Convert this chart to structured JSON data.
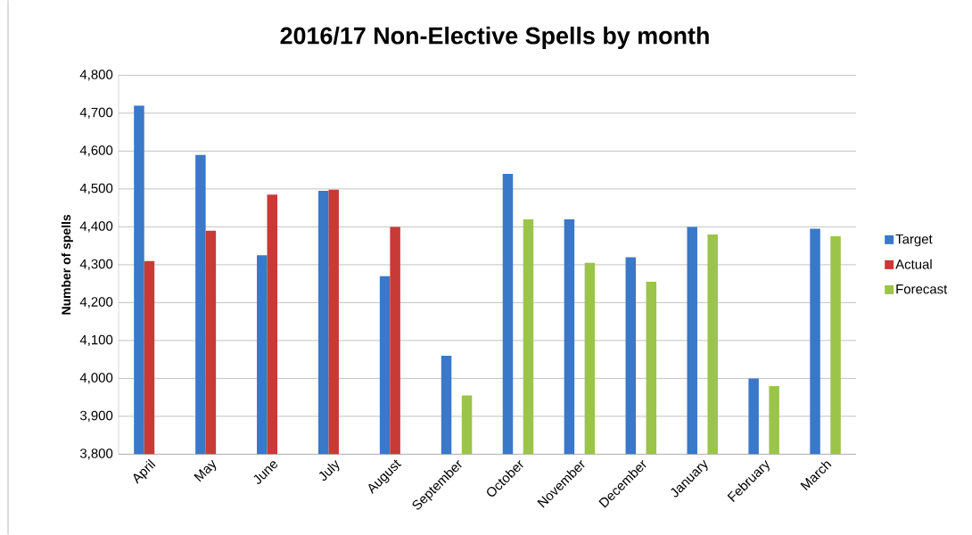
{
  "chart_data": {
    "type": "bar",
    "title": "2016/17 Non-Elective Spells by month",
    "ylabel": "Number of spells",
    "categories": [
      "April",
      "May",
      "June",
      "July",
      "August",
      "September",
      "October",
      "November",
      "December",
      "January",
      "February",
      "March"
    ],
    "series": [
      {
        "name": "Target",
        "color": "#3a78c8",
        "values": [
          4720,
          4590,
          4325,
          4495,
          4270,
          4060,
          4540,
          4420,
          4320,
          4400,
          4000,
          4395
        ]
      },
      {
        "name": "Actual",
        "color": "#c83a36",
        "values": [
          4310,
          4390,
          4485,
          4498,
          4400,
          null,
          null,
          null,
          null,
          null,
          null,
          null
        ]
      },
      {
        "name": "Forecast",
        "color": "#9bc44a",
        "values": [
          null,
          null,
          null,
          null,
          null,
          3955,
          4420,
          4305,
          4255,
          4380,
          3980,
          4375
        ]
      }
    ],
    "ylim": [
      3800,
      4800
    ],
    "yticks": [
      {
        "value": 3800,
        "label": "3,800"
      },
      {
        "value": 3900,
        "label": "3,900"
      },
      {
        "value": 4000,
        "label": "4,000"
      },
      {
        "value": 4100,
        "label": "4,100"
      },
      {
        "value": 4200,
        "label": "4,200"
      },
      {
        "value": 4300,
        "label": "4,300"
      },
      {
        "value": 4400,
        "label": "4,400"
      },
      {
        "value": 4500,
        "label": "4,500"
      },
      {
        "value": 4600,
        "label": "4,600"
      },
      {
        "value": 4700,
        "label": "4,700"
      },
      {
        "value": 4800,
        "label": "4,800"
      }
    ],
    "grid": "y",
    "legend": "right"
  }
}
